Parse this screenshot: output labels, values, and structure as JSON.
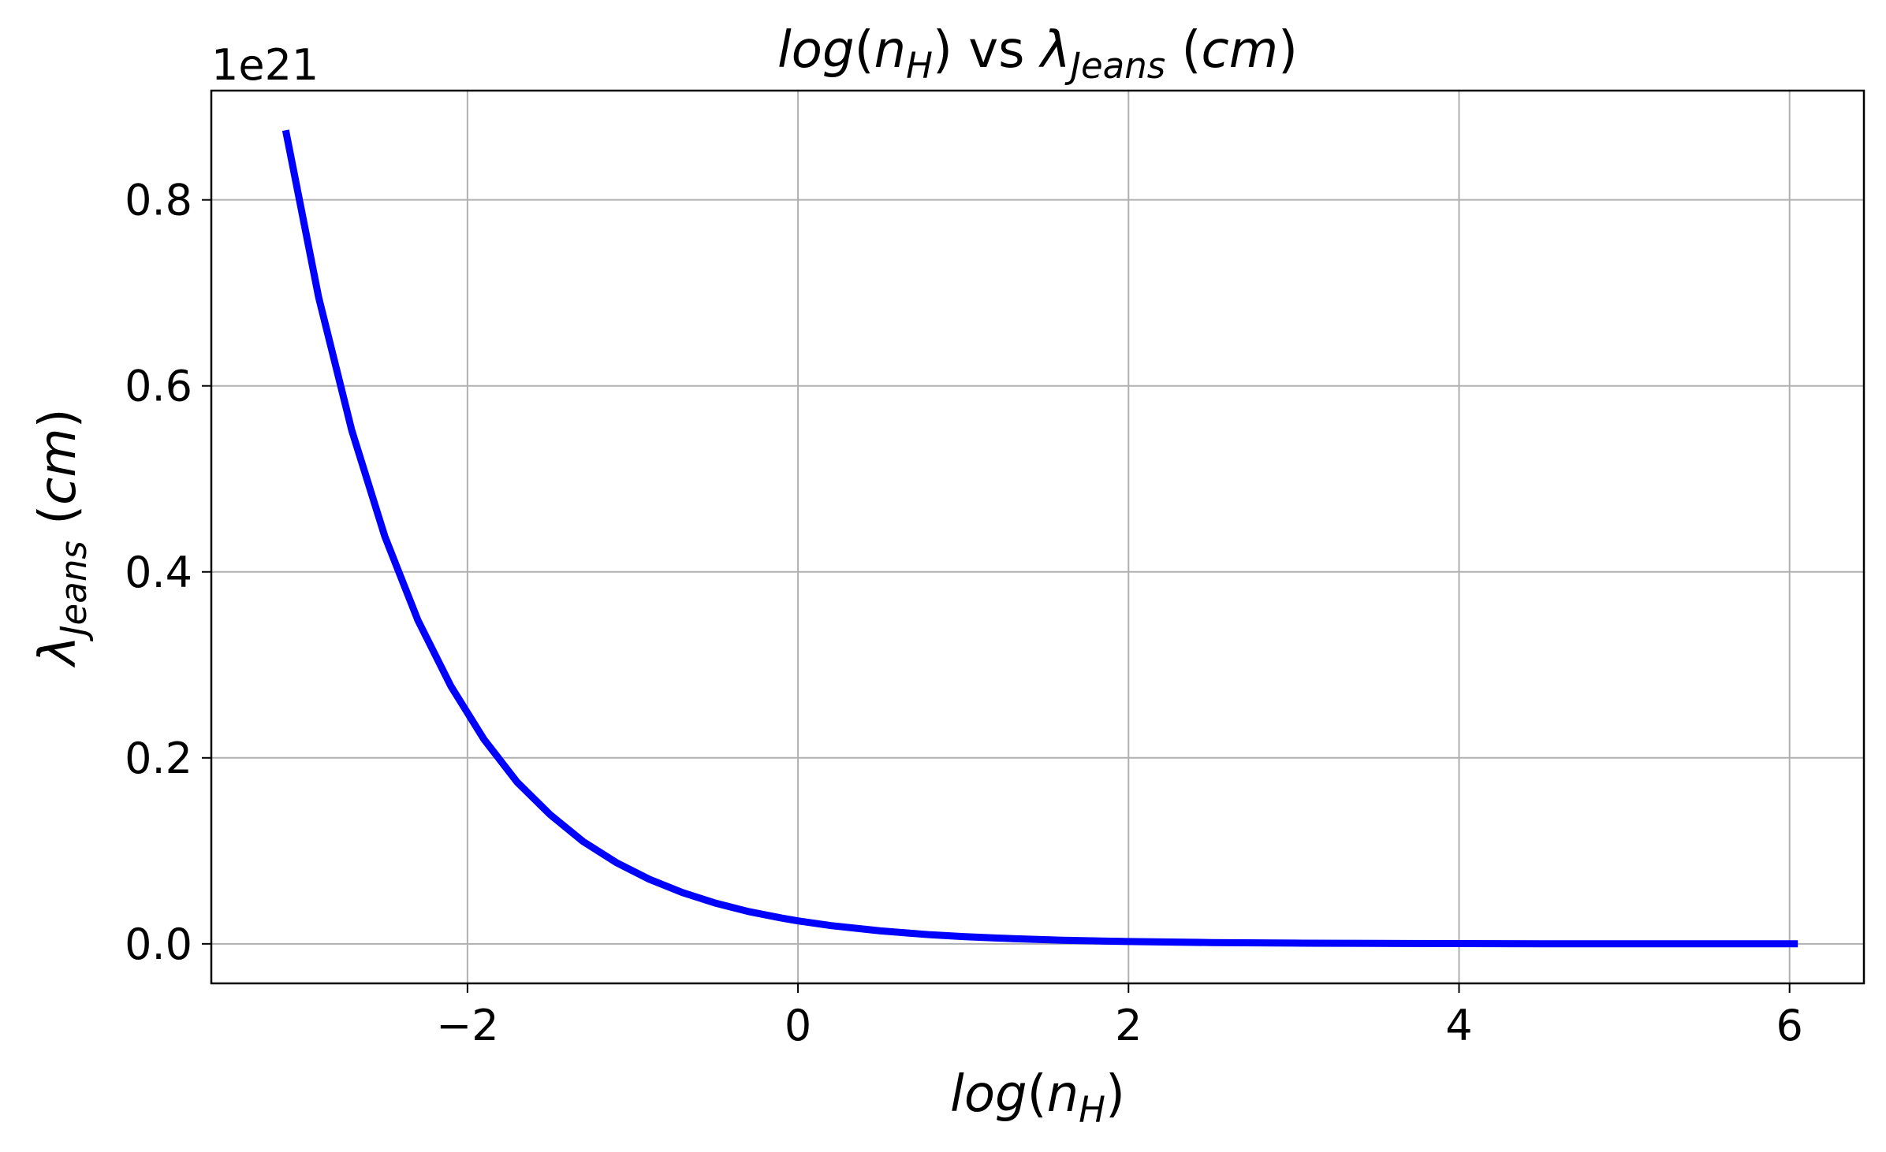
{
  "chart_data": {
    "type": "line",
    "title": {
      "segments": [
        {
          "text": "log",
          "italic": true
        },
        {
          "text": "(",
          "italic": false
        },
        {
          "text": "n",
          "italic": true
        },
        {
          "text": "H",
          "italic": true,
          "sub": true
        },
        {
          "text": ")",
          "italic": false
        },
        {
          "text": " vs ",
          "italic": false
        },
        {
          "text": "λ",
          "italic": true
        },
        {
          "text": "Jeans",
          "italic": true,
          "sub": true
        },
        {
          "text": " (",
          "italic": false
        },
        {
          "text": "cm",
          "italic": true
        },
        {
          "text": ")",
          "italic": false
        }
      ]
    },
    "xlabel": {
      "segments": [
        {
          "text": "log",
          "italic": true
        },
        {
          "text": "(",
          "italic": false
        },
        {
          "text": "n",
          "italic": true
        },
        {
          "text": "H",
          "italic": true,
          "sub": true
        },
        {
          "text": ")",
          "italic": false
        }
      ]
    },
    "ylabel": {
      "segments": [
        {
          "text": "λ",
          "italic": true
        },
        {
          "text": "Jeans",
          "italic": true,
          "sub": true
        },
        {
          "text": " (",
          "italic": false
        },
        {
          "text": "cm",
          "italic": true
        },
        {
          "text": ")",
          "italic": false
        }
      ]
    },
    "y_offset_label": "1e21",
    "y_scale_factor": 1e+21,
    "xlim": [
      -3.55,
      6.45
    ],
    "ylim": [
      -0.0425,
      0.9175
    ],
    "xticks": [
      {
        "value": -2,
        "label": "−2"
      },
      {
        "value": 0,
        "label": "0"
      },
      {
        "value": 2,
        "label": "2"
      },
      {
        "value": 4,
        "label": "4"
      },
      {
        "value": 6,
        "label": "6"
      }
    ],
    "yticks": [
      {
        "value": 0.0,
        "label": "0.0"
      },
      {
        "value": 0.2,
        "label": "0.2"
      },
      {
        "value": 0.4,
        "label": "0.4"
      },
      {
        "value": 0.6,
        "label": "0.6"
      },
      {
        "value": 0.8,
        "label": "0.8"
      }
    ],
    "grid": true,
    "legend": null,
    "series": [
      {
        "color": "#0000ff",
        "x": [
          -3.1,
          -2.9,
          -2.7,
          -2.5,
          -2.3,
          -2.1,
          -1.9,
          -1.7,
          -1.5,
          -1.3,
          -1.1,
          -0.9,
          -0.7,
          -0.5,
          -0.3,
          -0.1,
          0.0,
          0.2,
          0.5,
          0.8,
          1.0,
          1.3,
          1.6,
          2.0,
          2.5,
          3.0,
          3.5,
          4.0,
          4.5,
          5.0,
          5.5,
          6.05
        ],
        "y": [
          0.875,
          0.695,
          0.552,
          0.438,
          0.348,
          0.277,
          0.22,
          0.174,
          0.139,
          0.11,
          0.0875,
          0.0695,
          0.0552,
          0.0438,
          0.0348,
          0.0277,
          0.0247,
          0.0196,
          0.0139,
          0.0098,
          0.0078,
          0.0055,
          0.0039,
          0.0025,
          0.0014,
          0.00078,
          0.00044,
          0.00025,
          0.00014,
          7.8e-05,
          4.4e-05,
          2.3e-05
        ]
      }
    ]
  }
}
